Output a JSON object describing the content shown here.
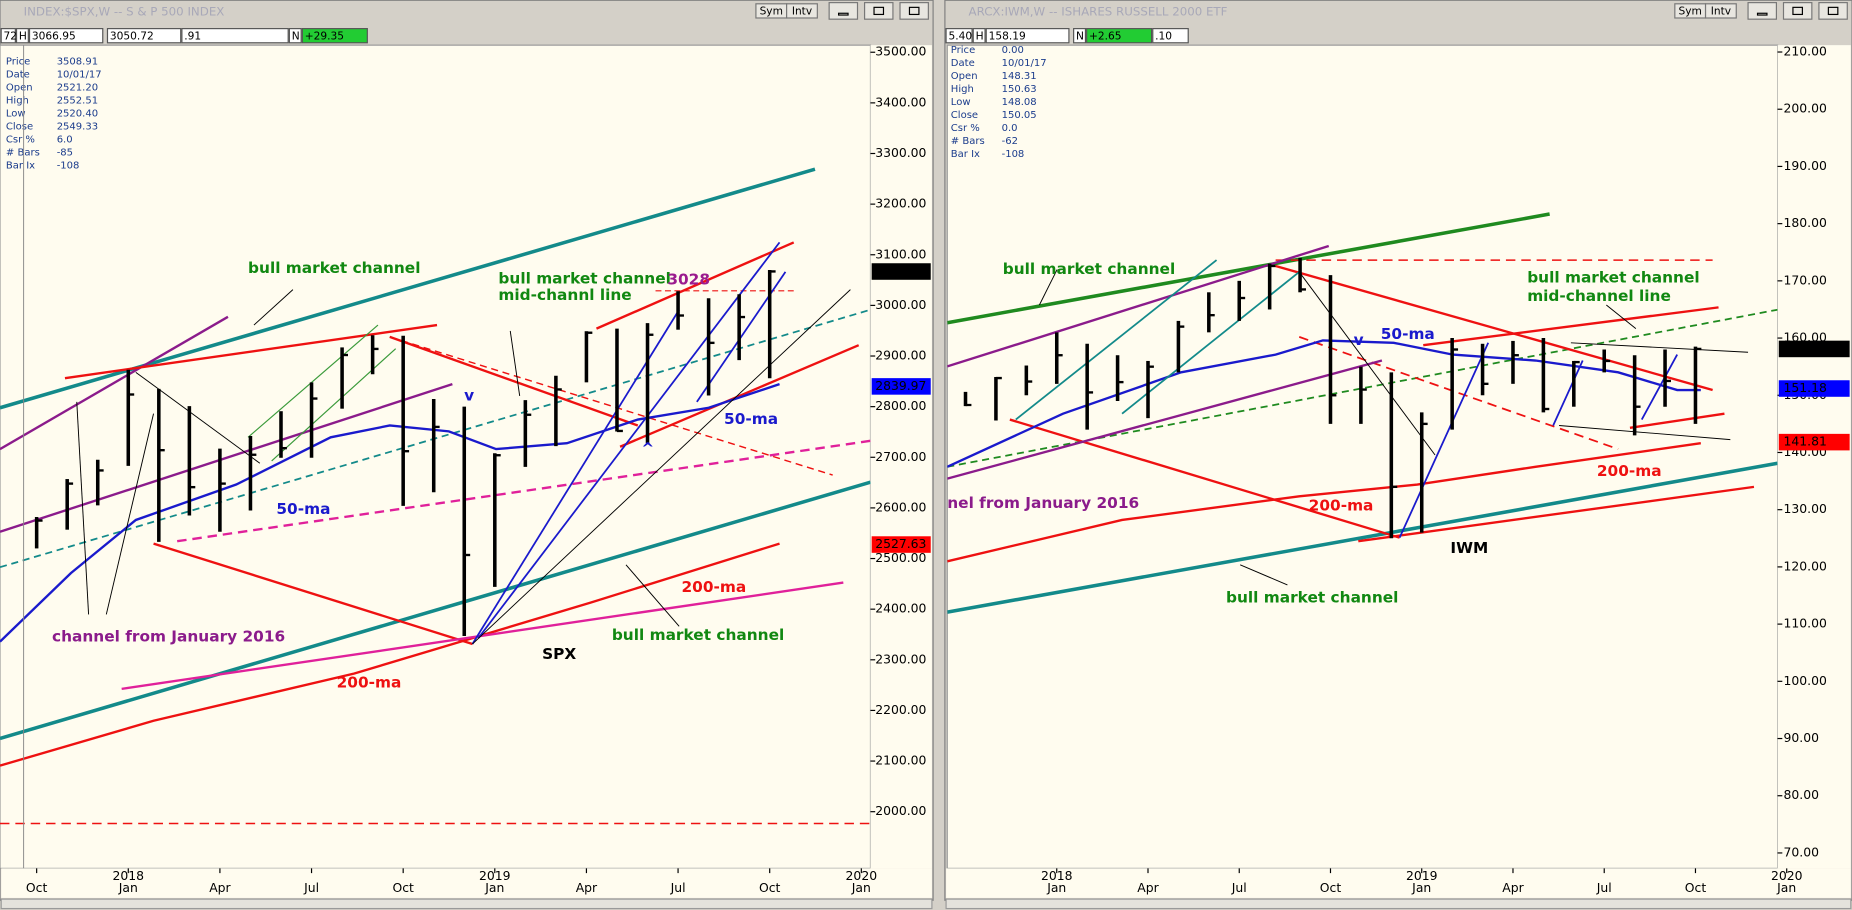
{
  "windows": [
    {
      "title": "INDEX:$SPX,W -- S & P 500 INDEX",
      "buttons": [
        "Sym",
        "Intv"
      ],
      "toolbar": [
        "72",
        "H",
        "3066.95",
        "3050.72",
        ".91",
        "N",
        "+29.35"
      ],
      "info": [
        [
          "Price",
          "3508.91"
        ],
        [
          "Date",
          "10/01/17"
        ],
        [
          "Open",
          "2521.20"
        ],
        [
          "High",
          "2552.51"
        ],
        [
          "Low",
          "2520.40"
        ],
        [
          "Close",
          "2549.33"
        ],
        [
          "Csr %",
          "6.0"
        ],
        [
          "# Bars",
          "-85"
        ],
        [
          "Bar Ix",
          "-108"
        ]
      ]
    },
    {
      "title": "ARCX:IWM,W -- ISHARES RUSSELL 2000 ETF",
      "buttons": [
        "Sym",
        "Intv"
      ],
      "toolbar": [
        "5.40",
        "H",
        "158.19",
        "N",
        "+2.65",
        ".10"
      ],
      "info": [
        [
          "Price",
          "0.00"
        ],
        [
          "Date",
          "10/01/17"
        ],
        [
          "Open",
          "148.31"
        ],
        [
          "High",
          "150.63"
        ],
        [
          "Low",
          "148.08"
        ],
        [
          "Close",
          "150.05"
        ],
        [
          "Csr %",
          "0.0"
        ],
        [
          "# Bars",
          "-62"
        ],
        [
          "Bar Ix",
          "-108"
        ]
      ]
    }
  ],
  "chart_data": [
    {
      "type": "ohlc",
      "color": "#000000",
      "xlim": [
        -4.2,
        24.3
      ],
      "ylim": [
        1888,
        3514
      ],
      "xticks": [
        {
          "value": -3,
          "label": "Oct"
        },
        {
          "value": 0,
          "label": "Jan"
        },
        {
          "value": 3,
          "label": "Apr"
        },
        {
          "value": 6,
          "label": "Jul"
        },
        {
          "value": 9,
          "label": "Oct"
        },
        {
          "value": 12,
          "label": "Jan"
        },
        {
          "value": 15,
          "label": "Apr"
        },
        {
          "value": 18,
          "label": "Jul"
        },
        {
          "value": 21,
          "label": "Oct"
        },
        {
          "value": 24,
          "label": "Jan"
        }
      ],
      "year_ticks": [
        {
          "value": 0,
          "label": "2018"
        },
        {
          "value": 12,
          "label": "2019"
        },
        {
          "value": 24,
          "label": "2020"
        }
      ],
      "yticks": [
        {
          "value": 2000,
          "label": "2000.00"
        },
        {
          "value": 2100,
          "label": "2100.00"
        },
        {
          "value": 2200,
          "label": "2200.00"
        },
        {
          "value": 2300,
          "label": "2300.00"
        },
        {
          "value": 2400,
          "label": "2400.00"
        },
        {
          "value": 2500,
          "label": "2500.00"
        },
        {
          "value": 2600,
          "label": "2600.00"
        },
        {
          "value": 2700,
          "label": "2700.00"
        },
        {
          "value": 2800,
          "label": "2800.00"
        },
        {
          "value": 2900,
          "label": "2900.00"
        },
        {
          "value": 3000,
          "label": "3000.00"
        },
        {
          "value": 3100,
          "label": "3100.00"
        },
        {
          "value": 3200,
          "label": "3200.00"
        },
        {
          "value": 3300,
          "label": "3300.00"
        },
        {
          "value": 3400,
          "label": "3400.00"
        },
        {
          "value": 3500,
          "label": "3500.00"
        }
      ],
      "x": [
        -3,
        -2,
        -1,
        0,
        1,
        2,
        3,
        4,
        5,
        6,
        7,
        8,
        9,
        10,
        11,
        12,
        13,
        14,
        15,
        16,
        17,
        18,
        19,
        20,
        21
      ],
      "high": [
        2582,
        2657,
        2695,
        2873,
        2835,
        2801,
        2717,
        2742,
        2791,
        2848,
        2917,
        2941,
        2940,
        2815,
        2800,
        2708,
        2813,
        2861,
        2949,
        2954,
        2965,
        3028,
        3014,
        3022,
        3070
      ],
      "low": [
        2520,
        2557,
        2605,
        2683,
        2533,
        2585,
        2553,
        2595,
        2699,
        2699,
        2796,
        2864,
        2604,
        2631,
        2347,
        2444,
        2681,
        2722,
        2848,
        2751,
        2728,
        2952,
        2822,
        2892,
        2856
      ],
      "close": [
        2575,
        2648,
        2674,
        2824,
        2714,
        2641,
        2648,
        2705,
        2718,
        2816,
        2902,
        2914,
        2712,
        2760,
        2507,
        2704,
        2784,
        2834,
        2946,
        2752,
        2942,
        2980,
        2926,
        2977,
        3067
      ],
      "price_markers": [
        {
          "value": 3066.91,
          "label": "3066.91",
          "color": "#000000"
        },
        {
          "value": 2839.97,
          "label": "2839.97",
          "color": "#0000ff"
        },
        {
          "value": 2527.63,
          "label": "2527.63",
          "color": "#ff0000"
        }
      ],
      "annotations": [
        {
          "text": "bull market channel",
          "color": "#118811"
        },
        {
          "text": "bull market channel",
          "color": "#118811"
        },
        {
          "text": "mid-channl line",
          "color": "#118811"
        },
        {
          "text": "3028",
          "color": "#9b1b8e"
        },
        {
          "text": "v",
          "color": "#1a1acc"
        },
        {
          "text": "50-ma",
          "color": "#1a1acc"
        },
        {
          "text": "^",
          "color": "#1a1acc"
        },
        {
          "text": "50-ma",
          "color": "#1a1acc"
        },
        {
          "text": "200-ma",
          "color": "#ee1111"
        },
        {
          "text": "200-ma",
          "color": "#ee1111"
        },
        {
          "text": "bull market channel",
          "color": "#118811"
        },
        {
          "text": "SPX",
          "color": "#000000"
        },
        {
          "text": "channel from January 2016",
          "color": "#8b1b8b"
        }
      ]
    },
    {
      "type": "ohlc",
      "color": "#000000",
      "xlim": [
        -3.6,
        23.7
      ],
      "ylim": [
        67.3,
        211.2
      ],
      "xticks": [
        {
          "value": 0,
          "label": "Jan"
        },
        {
          "value": 3,
          "label": "Apr"
        },
        {
          "value": 6,
          "label": "Jul"
        },
        {
          "value": 9,
          "label": "Oct"
        },
        {
          "value": 12,
          "label": "Jan"
        },
        {
          "value": 15,
          "label": "Apr"
        },
        {
          "value": 18,
          "label": "Jul"
        },
        {
          "value": 21,
          "label": "Oct"
        },
        {
          "value": 24,
          "label": "Jan"
        }
      ],
      "year_ticks": [
        {
          "value": 0,
          "label": "2018"
        },
        {
          "value": 12,
          "label": "2019"
        },
        {
          "value": 24,
          "label": "2020"
        }
      ],
      "yticks": [
        {
          "value": 70,
          "label": "70.00"
        },
        {
          "value": 80,
          "label": "80.00"
        },
        {
          "value": 90,
          "label": "90.00"
        },
        {
          "value": 100,
          "label": "100.00"
        },
        {
          "value": 110,
          "label": "110.00"
        },
        {
          "value": 120,
          "label": "120.00"
        },
        {
          "value": 130,
          "label": "130.00"
        },
        {
          "value": 140,
          "label": "140.00"
        },
        {
          "value": 150,
          "label": "150.00"
        },
        {
          "value": 160,
          "label": "160.00"
        },
        {
          "value": 170,
          "label": "170.00"
        },
        {
          "value": 180,
          "label": "180.00"
        },
        {
          "value": 190,
          "label": "190.00"
        },
        {
          "value": 200,
          "label": "200.00"
        },
        {
          "value": 210,
          "label": "210.00"
        }
      ],
      "x": [
        -3,
        -2,
        -1,
        0,
        1,
        2,
        3,
        4,
        5,
        6,
        7,
        8,
        9,
        10,
        11,
        12,
        13,
        14,
        15,
        16,
        17,
        18,
        19,
        20,
        21
      ],
      "high": [
        150.6,
        153.2,
        155.2,
        161,
        159,
        157,
        156,
        163,
        168,
        170,
        173,
        174,
        171,
        155,
        154,
        147,
        160,
        159,
        159.5,
        160,
        156,
        158,
        157,
        158,
        158.5
      ],
      "low": [
        148.1,
        145.6,
        150,
        152,
        144,
        149,
        146,
        154,
        161,
        163,
        165,
        168,
        145,
        145,
        125,
        126,
        144,
        150,
        152,
        147,
        148,
        154,
        143,
        148,
        145
      ],
      "close": [
        148.3,
        153,
        152.4,
        157,
        150.5,
        152.3,
        155,
        162,
        164,
        167,
        172.6,
        168.5,
        150,
        151,
        134,
        145,
        158,
        152,
        157,
        147.6,
        155.8,
        156,
        148,
        152.5,
        158.1
      ],
      "price_markers": [
        {
          "value": 158.1,
          "label": "158.10",
          "color": "#000000"
        },
        {
          "value": 151.18,
          "label": "151.18",
          "color": "#0000ff"
        },
        {
          "value": 141.81,
          "label": "141.81",
          "color": "#ff0000"
        }
      ],
      "annotations": [
        {
          "text": "bull market channel",
          "color": "#118811"
        },
        {
          "text": "bull market channel",
          "color": "#118811"
        },
        {
          "text": "mid-channel line",
          "color": "#118811"
        },
        {
          "text": "v",
          "color": "#1a1acc"
        },
        {
          "text": "50-ma",
          "color": "#1a1acc"
        },
        {
          "text": "nel from January 2016",
          "color": "#8b1b8b"
        },
        {
          "text": "200-ma",
          "color": "#ee1111"
        },
        {
          "text": "200-ma",
          "color": "#ee1111"
        },
        {
          "text": "IWM",
          "color": "#000000"
        },
        {
          "text": "bull market channel",
          "color": "#118811"
        }
      ]
    }
  ]
}
